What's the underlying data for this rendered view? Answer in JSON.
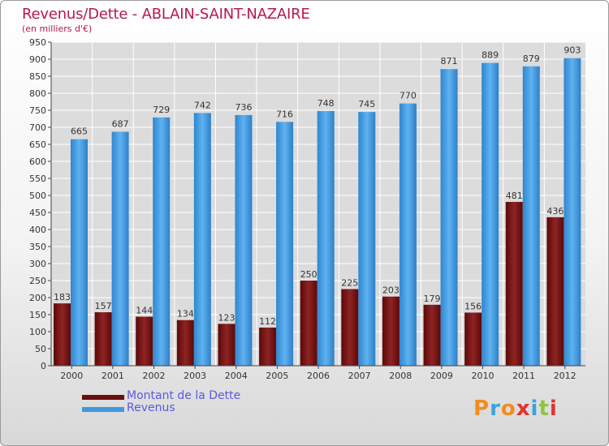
{
  "chart_data": {
    "type": "bar",
    "title": "Revenus/Dette - ABLAIN-SAINT-NAZAIRE",
    "subtitle": "(en milliers d'€)",
    "categories": [
      "2000",
      "2001",
      "2002",
      "2003",
      "2004",
      "2005",
      "2006",
      "2007",
      "2008",
      "2009",
      "2010",
      "2011",
      "2012"
    ],
    "series": [
      {
        "name": "Montant de la Dette",
        "color": "#8b1a1a",
        "values": [
          183,
          157,
          144,
          134,
          123,
          112,
          250,
          225,
          203,
          179,
          156,
          481,
          436
        ]
      },
      {
        "name": "Revenus",
        "color": "#3f9ae0",
        "values": [
          665,
          687,
          729,
          742,
          736,
          716,
          748,
          745,
          770,
          871,
          889,
          879,
          903
        ]
      }
    ],
    "ylim": [
      0,
      950
    ],
    "ytick_step": 50,
    "grid": true,
    "legend_position": "bottom-left"
  },
  "logo": {
    "letters": [
      "P",
      "r",
      "o",
      "x",
      "i",
      "t",
      "i"
    ],
    "colors": [
      "#f28c1e",
      "#3aa3dd",
      "#f28c1e",
      "#e6312b",
      "#3aa3dd",
      "#8cc63e",
      "#e6312b"
    ]
  }
}
